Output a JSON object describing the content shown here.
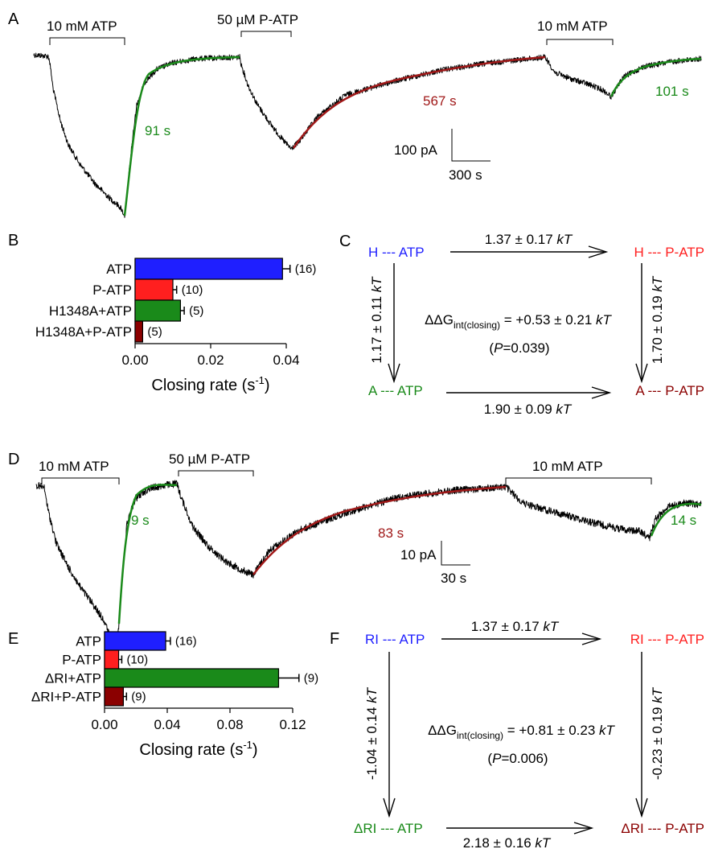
{
  "colors": {
    "atp": "#1f1fff",
    "patp": "#ff1f1f",
    "mutant_atp": "#1a8a1a",
    "mutant_patp": "#8b0000",
    "trace": "#000000",
    "fit_fast": "#1a8a1a",
    "fit_slow": "#a01818",
    "mutant_label": "#1a8a1a",
    "mutant_patp_label": "#8b0000"
  },
  "panelA": {
    "label": "A",
    "bars": [
      "10 mM ATP",
      "50 µM P-ATP",
      "10 mM ATP"
    ],
    "tau": [
      "91 s",
      "567 s",
      "101 s"
    ],
    "scale_y": "100 pA",
    "scale_x": "300 s"
  },
  "panelD": {
    "label": "D",
    "bars": [
      "10 mM ATP",
      "50 µM P-ATP",
      "10 mM ATP"
    ],
    "tau": [
      "9 s",
      "83 s",
      "14 s"
    ],
    "scale_y": "10 pA",
    "scale_x": "30 s"
  },
  "chart_data": [
    {
      "panel": "B",
      "type": "bar",
      "orientation": "horizontal",
      "categories": [
        "ATP",
        "P-ATP",
        "H1348A+ATP",
        "H1348A+P-ATP"
      ],
      "values": [
        0.039,
        0.01,
        0.012,
        0.002
      ],
      "errors": [
        0.002,
        0.001,
        0.001,
        0.0
      ],
      "n": [
        "(16)",
        "(10)",
        "(5)",
        "(5)"
      ],
      "xlabel": "Closing rate (s",
      "xlabel_sup": "-1",
      "xlabel_end": ")",
      "xlim": [
        0,
        0.04
      ],
      "ticks": [
        "0.00",
        "0.02",
        "0.04"
      ],
      "tick_values": [
        0,
        0.02,
        0.04
      ]
    },
    {
      "panel": "E",
      "type": "bar",
      "orientation": "horizontal",
      "categories": [
        "ATP",
        "P-ATP",
        "ΔRI+ATP",
        "ΔRI+P-ATP"
      ],
      "values": [
        0.039,
        0.009,
        0.111,
        0.012
      ],
      "errors": [
        0.003,
        0.002,
        0.013,
        0.002
      ],
      "n": [
        "(16)",
        "(10)",
        "(9)",
        "(9)"
      ],
      "xlabel": "Closing rate (s",
      "xlabel_sup": "-1",
      "xlabel_end": ")",
      "xlim": [
        0,
        0.12
      ],
      "ticks": [
        "0.00",
        "0.04",
        "0.08",
        "0.12"
      ],
      "tick_values": [
        0,
        0.04,
        0.08,
        0.12
      ]
    }
  ],
  "panelC": {
    "label": "C",
    "tl_pre": "H --- ",
    "tl_post": "ATP",
    "tr_pre": "H --- ",
    "tr_post": "P-ATP",
    "bl_pre": "A --- ",
    "bl_post": "ATP",
    "br_pre": "A --- ",
    "br_post": "P-ATP",
    "top_val": "1.37 ± 0.17 ",
    "top_unit": "kT",
    "bottom_val": "1.90 ± 0.09 ",
    "bottom_unit": "kT",
    "left_val": "1.17 ± 0.11 ",
    "left_unit": "kT",
    "right_val": "1.70 ± 0.19 ",
    "right_unit": "kT",
    "ddg_head": "ΔΔG",
    "ddg_sub": "int(closing)",
    "ddg_val": " = +0.53 ± 0.21 ",
    "ddg_unit": "kT",
    "p_open": "(",
    "p_sym": "P",
    "p_val": "=0.039)"
  },
  "panelF": {
    "label": "F",
    "tl_pre": "RI --- ",
    "tl_post": "ATP",
    "tr_pre": "RI --- ",
    "tr_post": "P-ATP",
    "bl_pre": "ΔRI --- ",
    "bl_post": "ATP",
    "br_pre": "ΔRI --- ",
    "br_post": "P-ATP",
    "top_val": "1.37 ± 0.17 ",
    "top_unit": "kT",
    "bottom_val": "2.18 ± 0.16 ",
    "bottom_unit": "kT",
    "left_val": "-1.04 ± 0.14 ",
    "left_unit": "kT",
    "right_val": "-0.23 ± 0.19 ",
    "right_unit": "kT",
    "ddg_head": "ΔΔG",
    "ddg_sub": "int(closing)",
    "ddg_val": " = +0.81 ± 0.23 ",
    "ddg_unit": "kT",
    "p_open": "(",
    "p_sym": "P",
    "p_val": "=0.006)"
  }
}
